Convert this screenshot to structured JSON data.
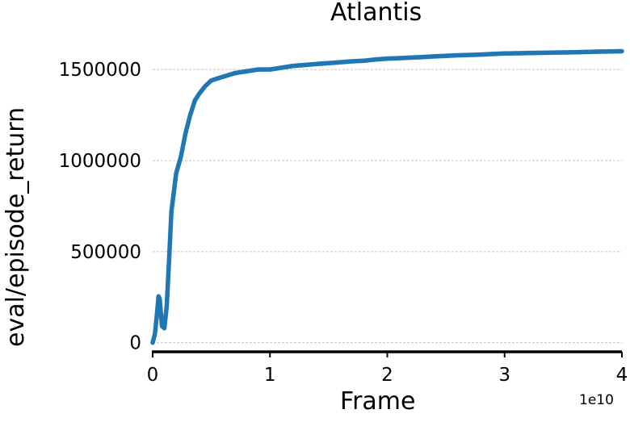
{
  "chart_data": {
    "type": "line",
    "title": "Atlantis",
    "xlabel": "Frame",
    "ylabel": "eval/episode_return",
    "x_offset_label": "1e10",
    "xlim": [
      0,
      4
    ],
    "ylim": [
      -50000,
      1660000
    ],
    "x_ticks": [
      "0",
      "1",
      "2",
      "3",
      "4"
    ],
    "y_ticks": [
      "0",
      "500000",
      "1000000",
      "1500000"
    ],
    "grid": "horizontal-dashed",
    "colors": {
      "line": "#1f77b4",
      "band": "#aec7e8",
      "grid": "#b0b0b0",
      "axis": "#000000"
    },
    "series": [
      {
        "name": "eval/episode_return",
        "x": [
          0.0,
          0.02,
          0.04,
          0.05,
          0.06,
          0.08,
          0.1,
          0.12,
          0.14,
          0.16,
          0.2,
          0.24,
          0.28,
          0.32,
          0.36,
          0.4,
          0.45,
          0.5,
          0.55,
          0.6,
          0.7,
          0.8,
          0.9,
          1.0,
          1.1,
          1.2,
          1.3,
          1.4,
          1.5,
          1.6,
          1.7,
          1.8,
          1.9,
          2.0,
          2.1,
          2.2,
          2.3,
          2.4,
          2.5,
          2.6,
          2.7,
          2.8,
          2.9,
          3.0,
          3.2,
          3.4,
          3.6,
          3.8,
          4.0
        ],
        "y": [
          0,
          50000,
          180000,
          255000,
          240000,
          90000,
          80000,
          200000,
          450000,
          720000,
          930000,
          1020000,
          1150000,
          1250000,
          1330000,
          1370000,
          1410000,
          1440000,
          1450000,
          1460000,
          1480000,
          1490000,
          1500000,
          1500000,
          1510000,
          1520000,
          1525000,
          1530000,
          1535000,
          1540000,
          1545000,
          1548000,
          1555000,
          1560000,
          1562000,
          1565000,
          1568000,
          1572000,
          1575000,
          1578000,
          1580000,
          1582000,
          1585000,
          1588000,
          1590000,
          1592000,
          1595000,
          1598000,
          1600000
        ]
      }
    ]
  }
}
